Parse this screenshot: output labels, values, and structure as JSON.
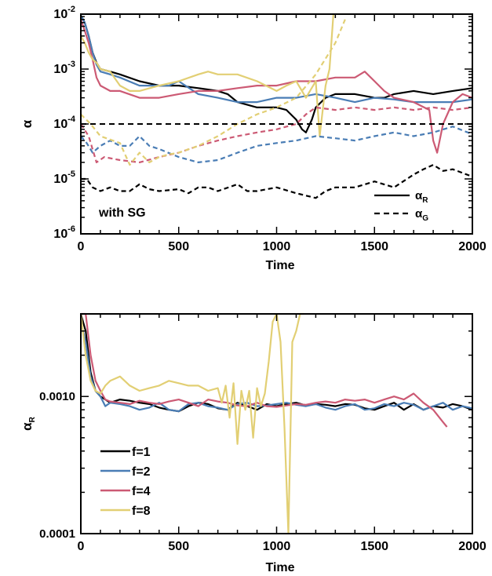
{
  "colors": {
    "f1": "#000000",
    "f2": "#4a7db5",
    "f4": "#cc5a74",
    "f8": "#e2cf74"
  },
  "chart_data": [
    {
      "type": "line",
      "annotation": "with SG",
      "xlabel": "Time",
      "ylabel": "α",
      "xlim": [
        0,
        2000
      ],
      "ylim": [
        1e-06,
        0.01
      ],
      "yscale": "log",
      "grid": false,
      "xticks": [
        "0",
        "500",
        "1000",
        "1500",
        "2000"
      ],
      "yticks": [
        {
          "value": 1e-06,
          "base": "10",
          "exp": "-6"
        },
        {
          "value": 1e-05,
          "base": "10",
          "exp": "-5"
        },
        {
          "value": 0.0001,
          "base": "10",
          "exp": "-4"
        },
        {
          "value": 0.001,
          "base": "10",
          "exp": "-3"
        },
        {
          "value": 0.01,
          "base": "10",
          "exp": "-2"
        }
      ],
      "reference_line": {
        "y": 0.0001,
        "style": "dashed"
      },
      "legend": {
        "placement": "bottom-right",
        "entries": [
          {
            "style": "solid",
            "symbol": "α",
            "sub": "R"
          },
          {
            "style": "dashed",
            "symbol": "α",
            "sub": "G"
          }
        ]
      },
      "series": [
        {
          "color_key": "f1",
          "style": "solid",
          "x": [
            0,
            20,
            40,
            60,
            80,
            100,
            150,
            200,
            300,
            400,
            500,
            600,
            700,
            750,
            800,
            900,
            1000,
            1050,
            1100,
            1130,
            1150,
            1180,
            1200,
            1250,
            1300,
            1400,
            1500,
            1550,
            1600,
            1700,
            1800,
            1900,
            2000
          ],
          "y": [
            0.0095,
            0.007,
            0.004,
            0.002,
            0.0013,
            0.001,
            0.0009,
            0.0008,
            0.0006,
            0.0005,
            0.0005,
            0.00045,
            0.0004,
            0.00035,
            0.00025,
            0.0002,
            0.0002,
            0.00018,
            0.00012,
            8e-05,
            7e-05,
            0.00012,
            0.0002,
            0.0003,
            0.00035,
            0.00035,
            0.0003,
            0.0003,
            0.00035,
            0.0004,
            0.00035,
            0.0004,
            0.00045
          ]
        },
        {
          "color_key": "f2",
          "style": "solid",
          "x": [
            0,
            20,
            40,
            60,
            80,
            100,
            150,
            200,
            300,
            400,
            450,
            500,
            600,
            700,
            800,
            900,
            1000,
            1100,
            1200,
            1300,
            1400,
            1500,
            1600,
            1700,
            1800,
            1900,
            2000
          ],
          "y": [
            0.0095,
            0.007,
            0.004,
            0.002,
            0.0012,
            0.0009,
            0.0008,
            0.0007,
            0.0005,
            0.0005,
            0.0005,
            0.0006,
            0.00035,
            0.0003,
            0.00025,
            0.00025,
            0.0003,
            0.0003,
            0.00035,
            0.0003,
            0.00025,
            0.0003,
            0.00028,
            0.00025,
            0.00025,
            0.00025,
            0.00028
          ]
        },
        {
          "color_key": "f4",
          "style": "solid",
          "x": [
            0,
            20,
            40,
            60,
            80,
            100,
            150,
            200,
            300,
            350,
            400,
            500,
            600,
            700,
            800,
            900,
            1000,
            1100,
            1200,
            1300,
            1400,
            1450,
            1500,
            1550,
            1600,
            1700,
            1780,
            1800,
            1820,
            1850,
            1900,
            1950,
            2000
          ],
          "y": [
            0.008,
            0.005,
            0.003,
            0.0015,
            0.0007,
            0.0005,
            0.0004,
            0.0004,
            0.0003,
            0.0003,
            0.0003,
            0.00035,
            0.0004,
            0.0004,
            0.00045,
            0.0005,
            0.0005,
            0.0006,
            0.0006,
            0.0007,
            0.0007,
            0.0009,
            0.0006,
            0.0004,
            0.0003,
            0.00025,
            0.00018,
            5e-05,
            3e-05,
            0.0001,
            0.00025,
            0.00035,
            0.0003
          ]
        },
        {
          "color_key": "f8",
          "style": "solid",
          "x": [
            0,
            20,
            40,
            60,
            80,
            100,
            150,
            200,
            250,
            300,
            400,
            500,
            600,
            650,
            700,
            800,
            900,
            1000,
            1050,
            1100,
            1150,
            1200,
            1220,
            1250,
            1270,
            1290
          ],
          "y": [
            0.004,
            0.003,
            0.002,
            0.0015,
            0.0013,
            0.001,
            0.0009,
            0.0005,
            0.0004,
            0.0004,
            0.0005,
            0.0006,
            0.0008,
            0.0009,
            0.0008,
            0.0008,
            0.0006,
            0.0004,
            0.0005,
            0.0006,
            0.0003,
            0.0006,
            6e-05,
            0.0005,
            0.001,
            0.012
          ]
        },
        {
          "color_key": "f1",
          "style": "dashed",
          "x": [
            0,
            30,
            60,
            100,
            150,
            200,
            250,
            300,
            350,
            400,
            500,
            550,
            600,
            650,
            700,
            800,
            850,
            900,
            1000,
            1100,
            1200,
            1250,
            1300,
            1400,
            1500,
            1600,
            1700,
            1750,
            1800,
            1850,
            1900,
            2000
          ],
          "y": [
            1e-05,
            1e-05,
            7e-06,
            6e-06,
            7e-06,
            6e-06,
            6e-06,
            8e-06,
            6.5e-06,
            6e-06,
            6.5e-06,
            5.5e-06,
            7e-06,
            7e-06,
            6e-06,
            8e-06,
            6e-06,
            6e-06,
            7e-06,
            5.5e-06,
            4.5e-06,
            6e-06,
            7e-06,
            7e-06,
            9e-06,
            7e-06,
            1.2e-05,
            1.5e-05,
            1.8e-05,
            1.4e-05,
            1.5e-05,
            1.1e-05
          ]
        },
        {
          "color_key": "f2",
          "style": "dashed",
          "x": [
            0,
            30,
            60,
            100,
            150,
            200,
            250,
            300,
            350,
            400,
            500,
            600,
            700,
            800,
            900,
            1000,
            1100,
            1200,
            1300,
            1400,
            1500,
            1600,
            1700,
            1800,
            1900,
            2000
          ],
          "y": [
            6e-05,
            4.5e-05,
            3e-05,
            4e-05,
            5e-05,
            4e-05,
            4e-05,
            6e-05,
            4e-05,
            3.5e-05,
            2.5e-05,
            2e-05,
            2.2e-05,
            3e-05,
            4e-05,
            4.5e-05,
            5e-05,
            6e-05,
            5.5e-05,
            5e-05,
            6e-05,
            7e-05,
            6e-05,
            7e-05,
            9e-05,
            6.5e-05
          ]
        },
        {
          "color_key": "f4",
          "style": "dashed",
          "x": [
            0,
            40,
            80,
            120,
            200,
            300,
            400,
            500,
            600,
            700,
            800,
            900,
            1000,
            1100,
            1150,
            1200,
            1300,
            1400,
            1500,
            1600,
            1700,
            1800,
            1900,
            2000
          ],
          "y": [
            0.0001,
            6e-05,
            2e-05,
            2.5e-05,
            2.2e-05,
            2e-05,
            2.5e-05,
            3e-05,
            4e-05,
            5e-05,
            6e-05,
            7e-05,
            8e-05,
            0.0001,
            0.00015,
            0.0002,
            0.00018,
            0.0002,
            0.00018,
            0.0002,
            0.00018,
            0.0002,
            0.00018,
            0.0002
          ]
        },
        {
          "color_key": "f8",
          "style": "dashed",
          "x": [
            0,
            50,
            100,
            200,
            250,
            300,
            350,
            400,
            450,
            500,
            600,
            700,
            800,
            900,
            1000,
            1100,
            1200,
            1300,
            1350
          ],
          "y": [
            0.00015,
            0.0001,
            6e-05,
            4.5e-05,
            1.8e-05,
            3e-05,
            2e-05,
            2.5e-05,
            2.8e-05,
            3e-05,
            4e-05,
            6e-05,
            0.0001,
            0.00015,
            0.0002,
            0.0003,
            0.0008,
            0.003,
            0.008
          ]
        }
      ]
    },
    {
      "type": "line",
      "xlabel": "Time",
      "ylabel": {
        "symbol": "α",
        "sub": "R"
      },
      "xlim": [
        0,
        2000
      ],
      "ylim": [
        0.0001,
        0.004
      ],
      "yscale": "log",
      "grid": false,
      "xticks": [
        "0",
        "500",
        "1000",
        "1500",
        "2000"
      ],
      "yticks": [
        {
          "value": 0.0001,
          "label": "0.0001"
        },
        {
          "value": 0.001,
          "label": "0.0010"
        }
      ],
      "legend": {
        "placement": "bottom-left",
        "entries": [
          {
            "color_key": "f1",
            "label": "f=1"
          },
          {
            "color_key": "f2",
            "label": "f=2"
          },
          {
            "color_key": "f4",
            "label": "f=4"
          },
          {
            "color_key": "f8",
            "label": "f=8"
          }
        ]
      },
      "series": [
        {
          "color_key": "f1",
          "name": "f=1",
          "x": [
            0,
            25,
            50,
            75,
            100,
            125,
            150,
            200,
            250,
            300,
            350,
            400,
            450,
            500,
            550,
            600,
            650,
            700,
            750,
            800,
            850,
            900,
            950,
            1000,
            1050,
            1100,
            1150,
            1200,
            1250,
            1300,
            1350,
            1400,
            1450,
            1500,
            1550,
            1600,
            1650,
            1700,
            1750,
            1800,
            1850,
            1900,
            1950,
            2000
          ],
          "y": [
            0.004,
            0.003,
            0.0015,
            0.0011,
            0.001,
            0.00095,
            0.0009,
            0.00095,
            0.00093,
            0.0009,
            0.00088,
            0.00083,
            0.0008,
            0.00078,
            0.00085,
            0.0009,
            0.00088,
            0.00082,
            0.0008,
            0.0009,
            0.00085,
            0.0008,
            0.00088,
            0.00085,
            0.00088,
            0.0009,
            0.00086,
            0.00088,
            0.00087,
            0.00085,
            0.00088,
            0.00087,
            0.00082,
            0.0008,
            0.00085,
            0.0009,
            0.0008,
            0.00088,
            0.0008,
            0.00085,
            0.00083,
            0.00088,
            0.00085,
            0.0008
          ]
        },
        {
          "color_key": "f2",
          "name": "f=2",
          "x": [
            0,
            25,
            50,
            75,
            100,
            125,
            150,
            200,
            250,
            300,
            350,
            400,
            450,
            500,
            550,
            600,
            650,
            700,
            750,
            800,
            850,
            900,
            950,
            1000,
            1050,
            1100,
            1150,
            1200,
            1250,
            1300,
            1350,
            1400,
            1450,
            1500,
            1550,
            1600,
            1650,
            1700,
            1750,
            1800,
            1850,
            1900,
            1950,
            2000
          ],
          "y": [
            0.0035,
            0.0025,
            0.0014,
            0.0011,
            0.001,
            0.00085,
            0.0009,
            0.00088,
            0.00085,
            0.0008,
            0.00083,
            0.0009,
            0.0008,
            0.00078,
            0.00088,
            0.0009,
            0.00085,
            0.00083,
            0.0008,
            0.00088,
            0.0009,
            0.00085,
            0.00086,
            0.00088,
            0.0009,
            0.00087,
            0.00085,
            0.00088,
            0.00083,
            0.0008,
            0.00085,
            0.00088,
            0.0008,
            0.00082,
            0.00088,
            0.00085,
            0.0009,
            0.00087,
            0.0008,
            0.00085,
            0.0009,
            0.0008,
            0.00085,
            0.00082
          ]
        },
        {
          "color_key": "f4",
          "name": "f=4",
          "x": [
            0,
            25,
            50,
            75,
            100,
            125,
            150,
            200,
            250,
            300,
            350,
            400,
            450,
            500,
            550,
            600,
            650,
            700,
            750,
            800,
            850,
            900,
            950,
            1000,
            1050,
            1100,
            1150,
            1200,
            1250,
            1300,
            1350,
            1400,
            1450,
            1500,
            1550,
            1600,
            1650,
            1700,
            1750,
            1800,
            1850,
            1870
          ],
          "y": [
            0.004,
            0.004,
            0.002,
            0.0013,
            0.0011,
            0.00095,
            0.00092,
            0.0009,
            0.00088,
            0.00093,
            0.0009,
            0.00088,
            0.00092,
            0.00095,
            0.0009,
            0.00085,
            0.00095,
            0.00092,
            0.0009,
            0.00086,
            0.00085,
            0.0009,
            0.00085,
            0.00084,
            0.00086,
            0.00088,
            0.00087,
            0.0009,
            0.00092,
            0.0009,
            0.00095,
            0.00093,
            0.00095,
            0.0009,
            0.00095,
            0.001,
            0.00095,
            0.00105,
            0.0009,
            0.0008,
            0.00065,
            0.0006
          ]
        },
        {
          "color_key": "f8",
          "name": "f=8",
          "x": [
            0,
            25,
            50,
            75,
            100,
            125,
            150,
            200,
            250,
            300,
            350,
            400,
            450,
            500,
            550,
            600,
            650,
            700,
            720,
            740,
            760,
            780,
            800,
            820,
            840,
            860,
            880,
            900,
            920,
            940,
            960,
            980,
            1000,
            1020,
            1040,
            1060,
            1080,
            1100,
            1120,
            1140
          ],
          "y": [
            0.004,
            0.002,
            0.0013,
            0.0011,
            0.00105,
            0.0012,
            0.0013,
            0.0014,
            0.0012,
            0.0011,
            0.00115,
            0.0012,
            0.0013,
            0.00125,
            0.0012,
            0.0012,
            0.0011,
            0.00115,
            0.0009,
            0.0012,
            0.0007,
            0.00125,
            0.00045,
            0.0011,
            0.0008,
            0.0011,
            0.0005,
            0.00115,
            0.00085,
            0.00105,
            0.0018,
            0.0035,
            0.0045,
            0.0025,
            0.0006,
            0.0001,
            0.0025,
            0.003,
            0.0045,
            0.004
          ]
        }
      ]
    }
  ]
}
